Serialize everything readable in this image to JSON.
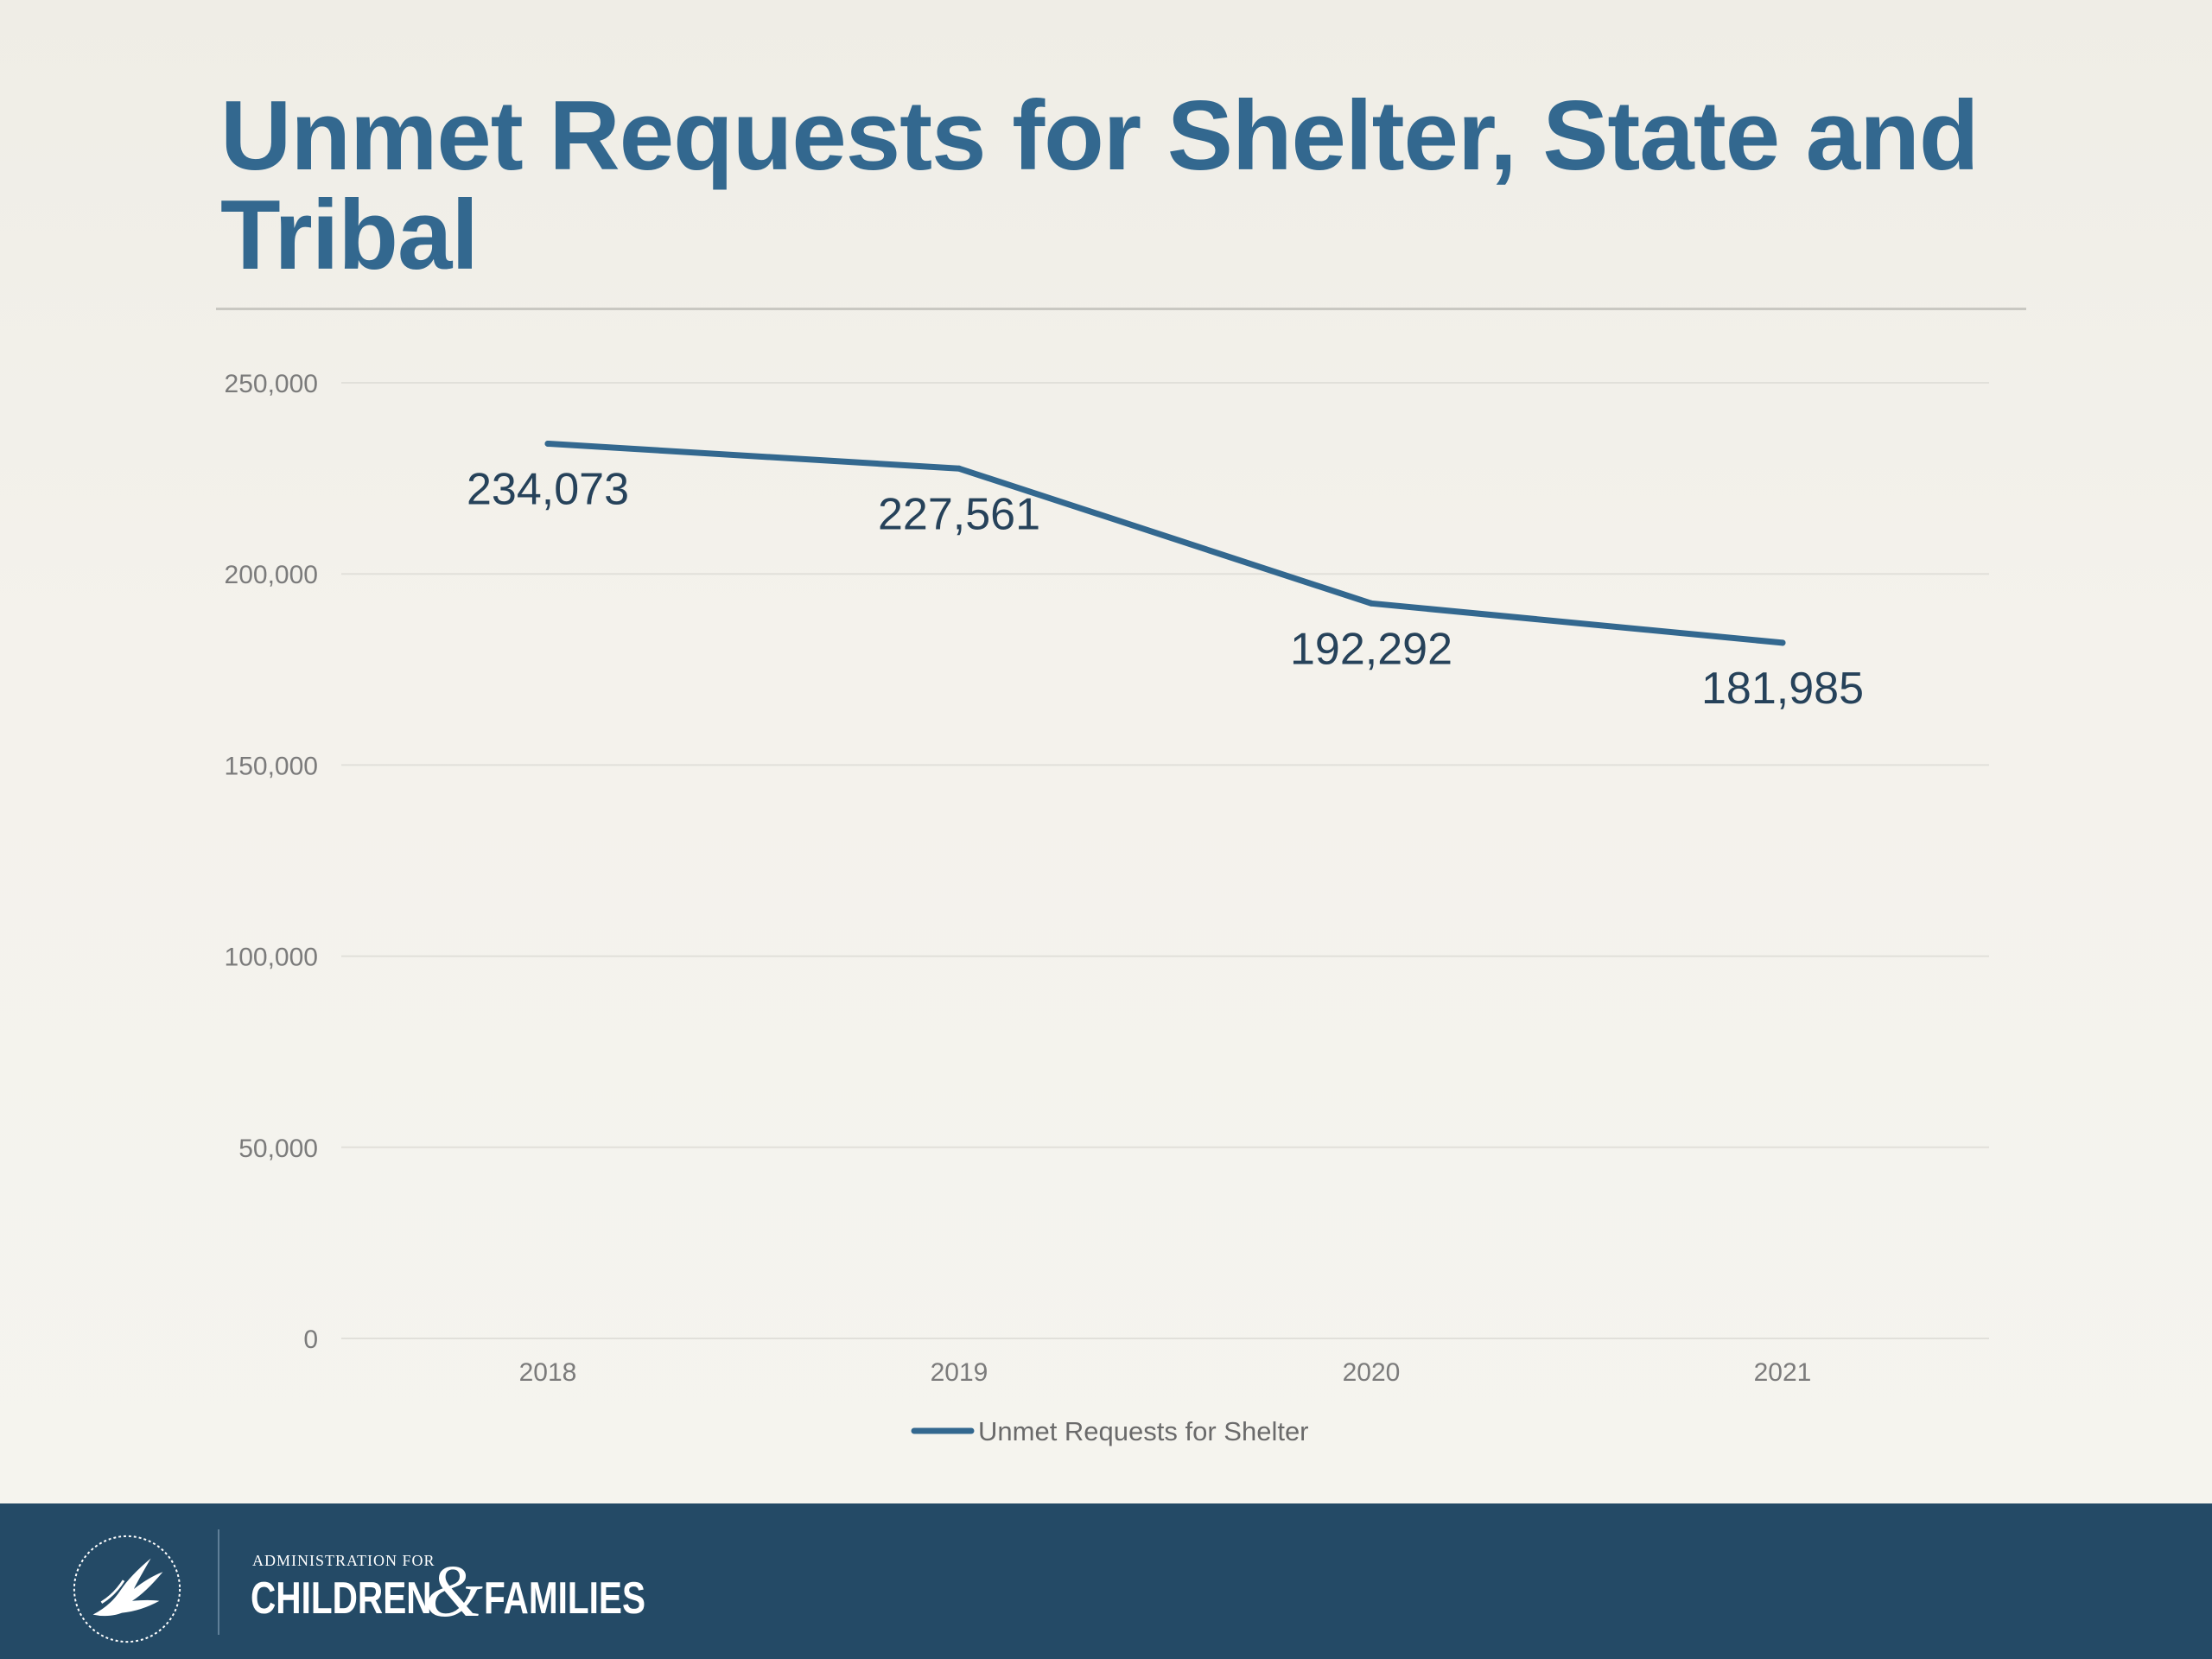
{
  "slide": {
    "title": "Unmet Requests for Shelter, State and Tribal"
  },
  "colors": {
    "title": "#33688f",
    "series_line": "#33688f",
    "footer_background": "#244a66",
    "gridline": "#e1e0da",
    "tick_text": "#7b7b7b",
    "data_label_text": "#26425a"
  },
  "chart_data": {
    "type": "line",
    "title": "",
    "xlabel": "",
    "ylabel": "",
    "categories": [
      "2018",
      "2019",
      "2020",
      "2021"
    ],
    "series": [
      {
        "name": "Unmet Requests for Shelter",
        "values": [
          234073,
          227561,
          192292,
          181985
        ],
        "data_labels": [
          "234,073",
          "227,561",
          "192,292",
          "181,985"
        ]
      }
    ],
    "ylim": [
      0,
      250000
    ],
    "yticks": [
      0,
      50000,
      100000,
      150000,
      200000,
      250000
    ],
    "ytick_labels": [
      "0",
      "50,000",
      "100,000",
      "150,000",
      "200,000",
      "250,000"
    ],
    "grid": true,
    "legend": "bottom"
  },
  "footer": {
    "agency_small": "ADMINISTRATION FOR",
    "agency_word1": "CHILDREN",
    "agency_amp": "&",
    "agency_word2": "FAMILIES",
    "seal_icon": "hhs-eagle-seal-icon"
  }
}
